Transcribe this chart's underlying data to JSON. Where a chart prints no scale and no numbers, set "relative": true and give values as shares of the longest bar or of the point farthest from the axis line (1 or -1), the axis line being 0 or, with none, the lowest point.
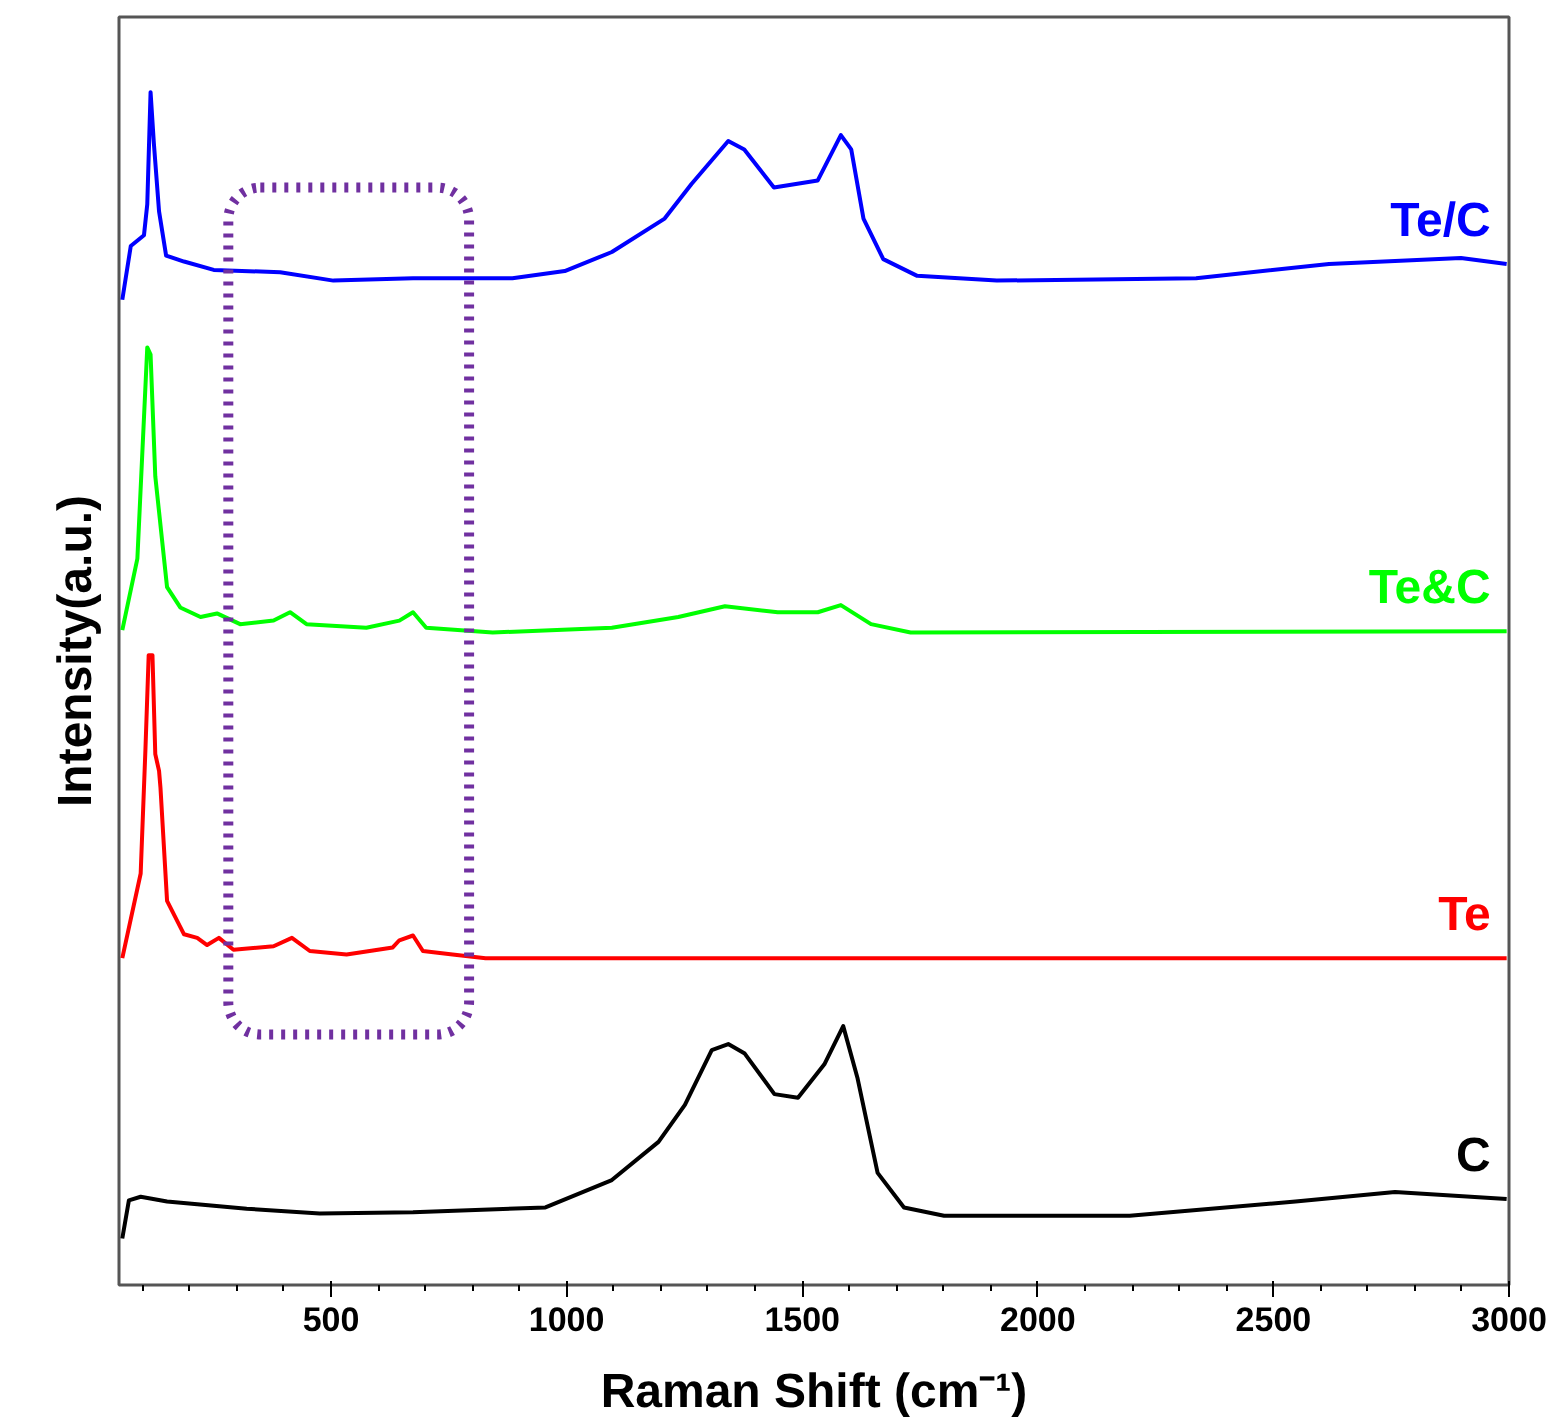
{
  "chart_data": {
    "type": "line",
    "relative": true,
    "xlabel": "Raman Shift (cm⁻¹)",
    "ylabel": "Intensity(a.u.)",
    "xlim": [
      50,
      3000
    ],
    "xticks": [
      500,
      1000,
      1500,
      2000,
      2500,
      3000
    ],
    "tick_labels": "x",
    "grid": false,
    "legend": false,
    "marker": "none",
    "line_style": "solid",
    "series": [
      {
        "name": "Te/C",
        "color": "#0000ff",
        "x": [
          57,
          75,
          103,
          110,
          117,
          124,
          135,
          150,
          188,
          251,
          392,
          505,
          674,
          885,
          996,
          1096,
          1208,
          1265,
          1343,
          1377,
          1440,
          1533,
          1582,
          1604,
          1630,
          1672,
          1744,
          1913,
          2336,
          2618,
          2898,
          2995
        ],
        "values": [
          0.826,
          0.871,
          0.88,
          0.906,
          1.0,
          0.957,
          0.9,
          0.863,
          0.858,
          0.851,
          0.849,
          0.842,
          0.844,
          0.844,
          0.85,
          0.866,
          0.894,
          0.923,
          0.959,
          0.952,
          0.92,
          0.926,
          0.964,
          0.952,
          0.894,
          0.86,
          0.846,
          0.842,
          0.844,
          0.856,
          0.861,
          0.856
        ]
      },
      {
        "name": "Te&C",
        "color": "#00ff00",
        "x": [
          57,
          89,
          110,
          117,
          127,
          152,
          180,
          223,
          258,
          307,
          378,
          413,
          448,
          575,
          645,
          674,
          702,
          843,
          1096,
          1237,
          1336,
          1448,
          1533,
          1582,
          1646,
          1730,
          2995
        ],
        "values": [
          0.549,
          0.609,
          0.786,
          0.78,
          0.678,
          0.585,
          0.568,
          0.56,
          0.563,
          0.554,
          0.557,
          0.564,
          0.554,
          0.551,
          0.557,
          0.564,
          0.551,
          0.547,
          0.551,
          0.56,
          0.569,
          0.564,
          0.564,
          0.57,
          0.554,
          0.547,
          0.548
        ]
      },
      {
        "name": "Te",
        "color": "#ff0000",
        "x": [
          57,
          96,
          106,
          113,
          121,
          127,
          135,
          138,
          152,
          188,
          216,
          237,
          262,
          293,
          378,
          417,
          455,
          533,
          631,
          645,
          674,
          695,
          758,
          828,
          2995
        ],
        "values": [
          0.274,
          0.345,
          0.448,
          0.528,
          0.528,
          0.445,
          0.431,
          0.417,
          0.322,
          0.294,
          0.291,
          0.285,
          0.291,
          0.281,
          0.284,
          0.291,
          0.28,
          0.277,
          0.283,
          0.289,
          0.293,
          0.28,
          0.277,
          0.274,
          0.274
        ]
      },
      {
        "name": "C",
        "color": "#000000",
        "x": [
          57,
          71,
          96,
          152,
          321,
          476,
          674,
          955,
          1096,
          1195,
          1251,
          1308,
          1343,
          1378,
          1441,
          1491,
          1547,
          1587,
          1617,
          1660,
          1716,
          1801,
          2195,
          2547,
          2758,
          2995
        ],
        "values": [
          0.039,
          0.071,
          0.074,
          0.07,
          0.064,
          0.06,
          0.061,
          0.065,
          0.088,
          0.12,
          0.151,
          0.197,
          0.202,
          0.194,
          0.16,
          0.157,
          0.185,
          0.217,
          0.174,
          0.094,
          0.065,
          0.058,
          0.058,
          0.07,
          0.078,
          0.072
        ]
      }
    ]
  }
}
